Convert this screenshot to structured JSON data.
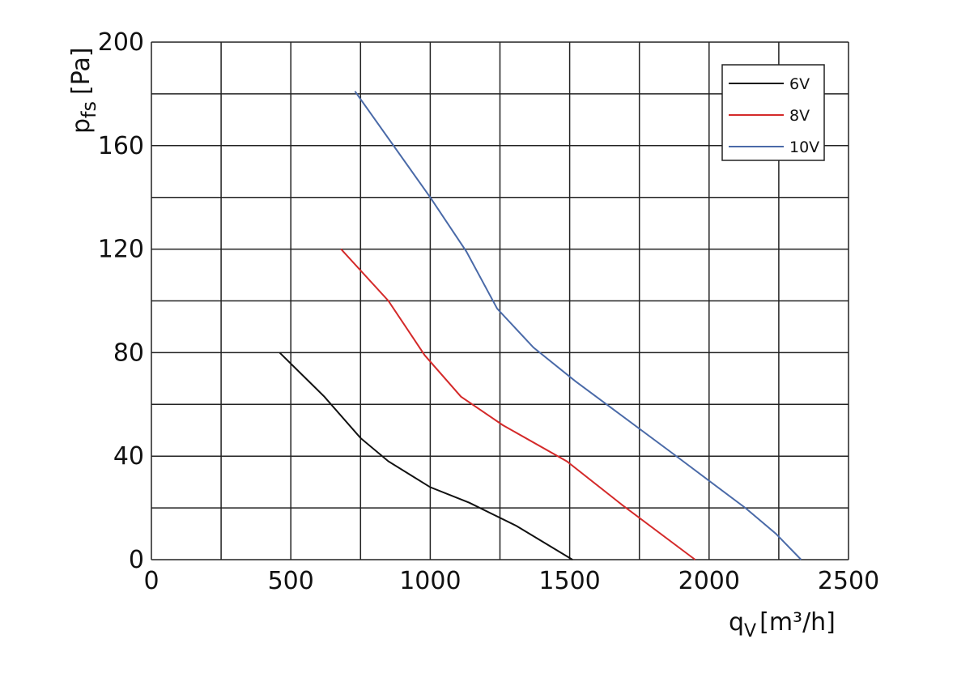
{
  "chart_data": {
    "type": "line",
    "ylabel": {
      "main": "p",
      "sub": "fs",
      "unit": "[Pa]"
    },
    "xlabel": {
      "main": "q",
      "sub": "V",
      "unit": "[m³/h]"
    },
    "xlim": [
      0,
      2500
    ],
    "xticks": [
      0,
      500,
      1000,
      1500,
      2000,
      2500
    ],
    "xminor_ticks": [
      250,
      750,
      1250,
      1750,
      2250
    ],
    "ylim": [
      0,
      200
    ],
    "yticks": [
      0,
      40,
      80,
      120,
      160,
      200
    ],
    "yminor_ticks": [
      20,
      60,
      100,
      140,
      180
    ],
    "grid": true,
    "legend": "upper right",
    "series": [
      {
        "name": "6V",
        "color": "#111111",
        "x": [
          460,
          620,
          750,
          850,
          1000,
          1140,
          1310,
          1510
        ],
        "values": [
          80,
          63,
          47,
          38,
          28,
          22,
          13,
          0
        ]
      },
      {
        "name": "8V",
        "color": "#d42a2a",
        "x": [
          680,
          850,
          980,
          1110,
          1260,
          1490,
          1690,
          1950
        ],
        "values": [
          120,
          100,
          79,
          63,
          52,
          38,
          21,
          0
        ]
      },
      {
        "name": "10V",
        "color": "#4a6aa8",
        "x": [
          730,
          1000,
          1130,
          1240,
          1370,
          1520,
          1870,
          2130,
          2240,
          2330
        ],
        "values": [
          181,
          140,
          119,
          97,
          82,
          69,
          41,
          20,
          10,
          0
        ]
      }
    ]
  }
}
